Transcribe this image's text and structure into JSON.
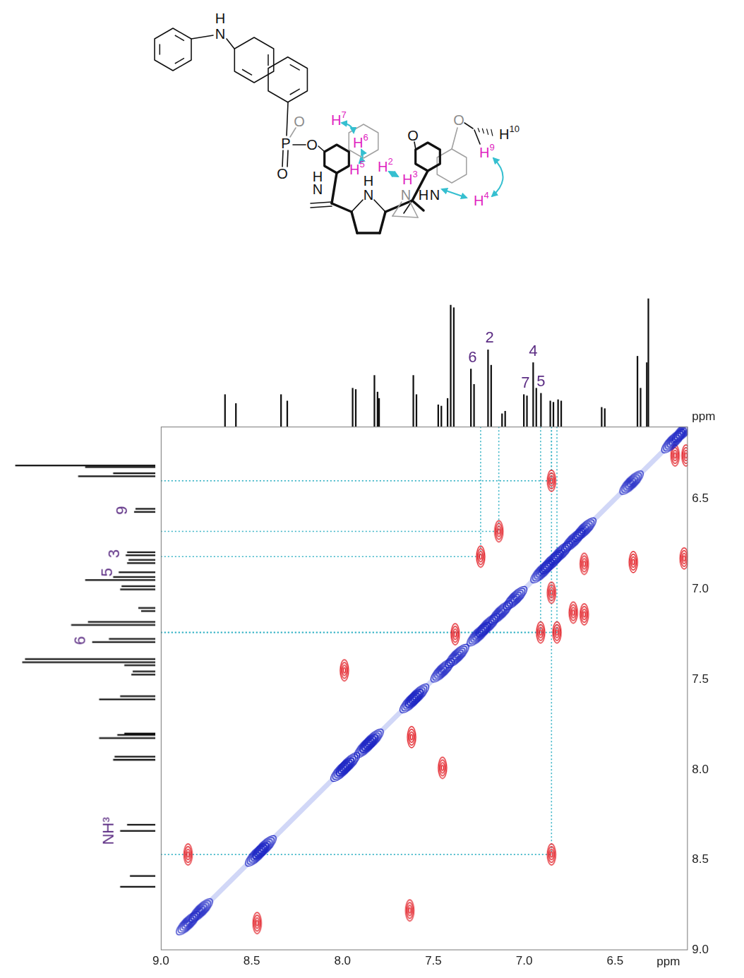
{
  "structure": {
    "atoms": [
      "H",
      "N",
      "P",
      "O",
      "O",
      "O",
      "N",
      "H",
      "N",
      "H",
      "N",
      "N",
      "H",
      "O",
      "O"
    ],
    "protons": [
      {
        "atom": "H",
        "index": "7",
        "color": "#e01fc0"
      },
      {
        "atom": "H",
        "index": "6",
        "color": "#e01fc0"
      },
      {
        "atom": "H",
        "index": "5",
        "color": "#e01fc0"
      },
      {
        "atom": "H",
        "index": "2",
        "color": "#e01fc0"
      },
      {
        "atom": "H",
        "index": "3",
        "color": "#e01fc0"
      },
      {
        "atom": "H",
        "index": "4",
        "color": "#e01fc0"
      },
      {
        "atom": "H",
        "index": "9",
        "color": "#e01fc0"
      },
      {
        "atom": "H",
        "index": "10",
        "color": "#111111"
      }
    ],
    "arrow_color": "#35bfd0"
  },
  "chart_data": {
    "type": "scatter",
    "x_label": "ppm",
    "y_label": "ppm",
    "xlim": [
      9.0,
      6.1
    ],
    "ylim": [
      9.0,
      6.1
    ],
    "xticks": [
      {
        "value": 9,
        "label": "9.0"
      },
      8.5,
      {
        "value": 8,
        "label": "8.0"
      },
      7.5,
      {
        "value": 7,
        "label": "7.0"
      },
      6.5
    ],
    "yticks": [
      6.5,
      {
        "value": 7,
        "label": "7.0"
      },
      7.5,
      {
        "value": 8,
        "label": "8.0"
      },
      8.5,
      {
        "value": 9,
        "label": "9.0"
      }
    ],
    "grid": false,
    "series": [
      {
        "color": "#1c24c4",
        "marker": "diagonal-ellipse",
        "points": [
          [
            8.85,
            8.85
          ],
          [
            8.78,
            8.78
          ],
          [
            8.47,
            8.47
          ],
          [
            8.43,
            8.43
          ],
          [
            8.0,
            8.0
          ],
          [
            7.97,
            7.97
          ],
          [
            7.87,
            7.87
          ],
          [
            7.84,
            7.84
          ],
          [
            7.62,
            7.62
          ],
          [
            7.59,
            7.59
          ],
          [
            7.45,
            7.45
          ],
          [
            7.37,
            7.37
          ],
          [
            7.25,
            7.25
          ],
          [
            7.2,
            7.2
          ],
          [
            7.13,
            7.13
          ],
          [
            7.05,
            7.05
          ],
          [
            6.9,
            6.9
          ],
          [
            6.85,
            6.85
          ],
          [
            6.8,
            6.8
          ],
          [
            6.73,
            6.73
          ],
          [
            6.67,
            6.67
          ],
          [
            6.41,
            6.41
          ],
          [
            6.18,
            6.18
          ],
          [
            6.12,
            6.12
          ]
        ]
      },
      {
        "color": "#e3242b",
        "marker": "ellipse",
        "points": [
          [
            6.85,
            6.4
          ],
          [
            6.4,
            6.85
          ],
          [
            7.14,
            6.68
          ],
          [
            6.67,
            7.14
          ],
          [
            6.73,
            7.13
          ],
          [
            7.24,
            6.82
          ],
          [
            6.82,
            7.24
          ],
          [
            6.91,
            7.24
          ],
          [
            6.85,
            7.02
          ],
          [
            7.38,
            7.25
          ],
          [
            6.12,
            6.83
          ],
          [
            6.17,
            6.26
          ],
          [
            6.11,
            6.26
          ],
          [
            6.67,
            6.86
          ],
          [
            7.62,
            7.82
          ],
          [
            7.45,
            7.99
          ],
          [
            7.99,
            7.45
          ],
          [
            7.63,
            8.78
          ],
          [
            8.47,
            8.85
          ],
          [
            8.85,
            8.47
          ],
          [
            6.85,
            8.47
          ]
        ]
      }
    ],
    "guides": {
      "color": "#39b4c6",
      "points": [
        [
          6.85,
          6.4
        ],
        [
          7.14,
          6.68
        ],
        [
          7.24,
          6.82
        ],
        [
          6.91,
          7.24
        ],
        [
          6.82,
          7.24
        ],
        [
          6.85,
          8.47
        ]
      ]
    },
    "projection": {
      "color": "#111111",
      "ylim": [
        0,
        1.05
      ],
      "x": [
        8.83,
        8.76,
        8.47,
        8.43,
        8.01,
        7.99,
        7.87,
        7.85,
        7.84,
        7.62,
        7.6,
        7.46,
        7.44,
        7.4,
        7.38,
        7.36,
        7.25,
        7.23,
        7.14,
        7.12,
        7.05,
        7.03,
        6.91,
        6.89,
        6.85,
        6.83,
        6.8,
        6.74,
        6.72,
        6.69,
        6.67,
        6.41,
        6.39,
        6.18,
        6.16,
        6.12,
        6.11
      ],
      "values": [
        0.25,
        0.18,
        0.25,
        0.2,
        0.3,
        0.29,
        0.4,
        0.27,
        0.22,
        0.4,
        0.25,
        0.17,
        0.16,
        0.22,
        0.95,
        0.93,
        0.45,
        0.33,
        0.6,
        0.48,
        0.1,
        0.12,
        0.25,
        0.24,
        0.5,
        0.3,
        0.26,
        0.2,
        0.19,
        0.21,
        0.2,
        0.15,
        0.14,
        0.55,
        0.3,
        0.5,
        1.0
      ]
    },
    "label_color": "#5b2c83",
    "top_labels": [
      {
        "x": 7.24,
        "label": "6"
      },
      {
        "x": 7.13,
        "label": "2"
      },
      {
        "x": 6.9,
        "label": "7"
      },
      {
        "x": 6.85,
        "label": "4"
      },
      {
        "x": 6.8,
        "label": "5"
      }
    ],
    "left_labels": [
      {
        "y": 6.4,
        "label": "9"
      },
      {
        "y": 6.68,
        "label": "3"
      },
      {
        "y": 6.8,
        "label": "5"
      },
      {
        "y": 7.24,
        "label": "6"
      },
      {
        "y": 8.47,
        "label": "NH³"
      }
    ]
  }
}
